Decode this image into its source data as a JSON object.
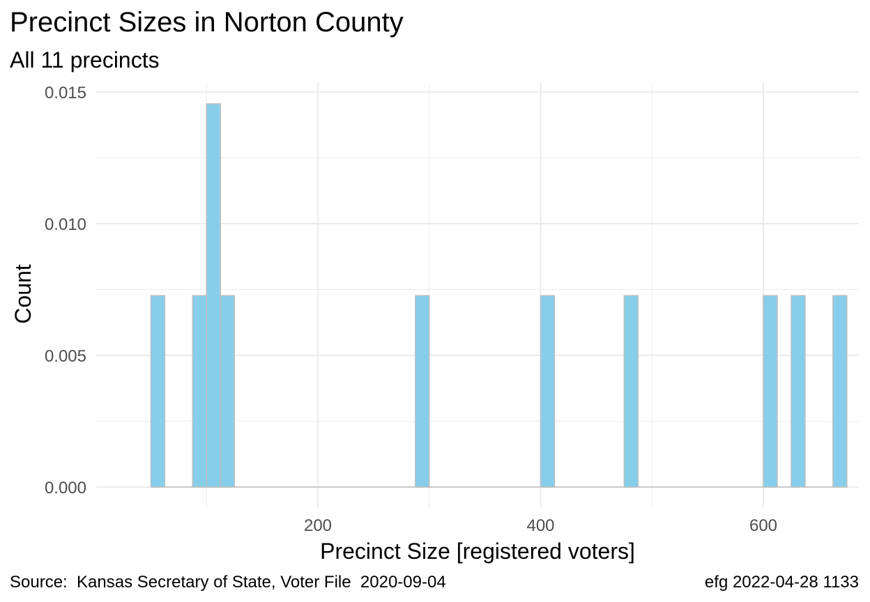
{
  "chart_data": {
    "type": "bar",
    "title": "Precinct Sizes in Norton County",
    "subtitle": "All 11 precincts",
    "xlabel": "Precinct Size [registered voters]",
    "ylabel": "Count",
    "caption_left": "Source:  Kansas Secretary of State, Voter File  2020-09-04",
    "caption_right": "efg 2022-04-28 1133",
    "xlim": [
      30,
      680
    ],
    "ylim": [
      0,
      0.0155
    ],
    "x_ticks": [
      200,
      400,
      600
    ],
    "x_tick_labels": [
      "200",
      "400",
      "600"
    ],
    "y_ticks": [
      0,
      0.005,
      0.01,
      0.015
    ],
    "y_tick_labels": [
      "0.000",
      "0.005",
      "0.010",
      "0.015"
    ],
    "grid": true,
    "bin_width": 12.5,
    "bins": [
      {
        "x0": 50.0,
        "x1": 62.5,
        "value": 0.00727
      },
      {
        "x0": 87.5,
        "x1": 100.0,
        "value": 0.00727
      },
      {
        "x0": 100.0,
        "x1": 112.5,
        "value": 0.01455
      },
      {
        "x0": 112.5,
        "x1": 125.0,
        "value": 0.00727
      },
      {
        "x0": 287.5,
        "x1": 300.0,
        "value": 0.00727
      },
      {
        "x0": 400.0,
        "x1": 412.5,
        "value": 0.00727
      },
      {
        "x0": 475.0,
        "x1": 487.5,
        "value": 0.00727
      },
      {
        "x0": 600.0,
        "x1": 612.5,
        "value": 0.00727
      },
      {
        "x0": 625.0,
        "x1": 637.5,
        "value": 0.00727
      },
      {
        "x0": 662.5,
        "x1": 675.0,
        "value": 0.00727
      }
    ],
    "bar_fill": "#87ceeb",
    "bar_stroke": "#bebebe",
    "grid_color": "#ebebeb"
  }
}
